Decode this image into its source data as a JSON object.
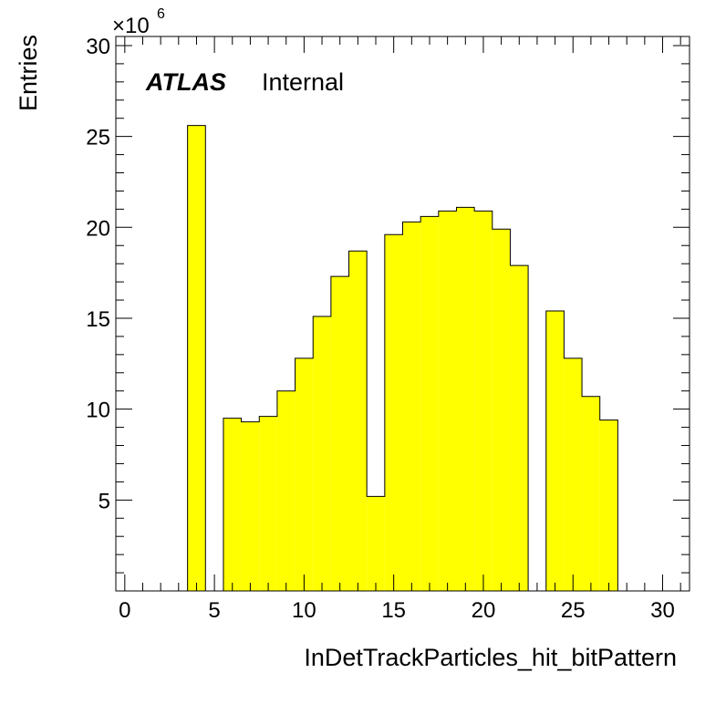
{
  "chart_data": {
    "type": "bar",
    "xlabel": "InDetTrackParticles_hit_bitPattern",
    "ylabel": "Entries",
    "y_multiplier": "×10",
    "y_multiplier_exp": "6",
    "label_bold": "ATLAS",
    "label_text": "Internal",
    "xlim": [
      -0.5,
      31.5
    ],
    "ylim": [
      0,
      30.5
    ],
    "bin_width": 1,
    "bin_centers": [
      4,
      6,
      7,
      8,
      9,
      10,
      11,
      12,
      13,
      14,
      15,
      16,
      17,
      18,
      19,
      20,
      21,
      22,
      24,
      25,
      26,
      27
    ],
    "values": [
      25.6,
      9.5,
      9.3,
      9.6,
      11.0,
      12.8,
      15.1,
      17.3,
      18.7,
      5.2,
      19.6,
      20.3,
      20.6,
      20.9,
      21.1,
      20.9,
      19.9,
      17.9,
      15.4,
      12.8,
      10.7,
      9.4
    ],
    "xticks": [
      "0",
      "5",
      "10",
      "15",
      "20",
      "25",
      "30"
    ],
    "yticks": [
      "5",
      "10",
      "15",
      "20",
      "25",
      "30"
    ],
    "bar_color": "#ffff00",
    "edge_color": "#000000",
    "grid": false
  }
}
